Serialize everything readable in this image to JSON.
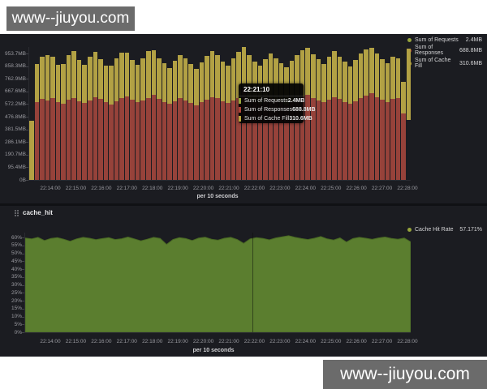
{
  "watermarks": {
    "top": "www--jiuyou.com",
    "bottom": "www--jiuyou.com"
  },
  "colors": {
    "requests": "#96a43c",
    "responses": "#96423a",
    "cache_fill": "#b2a144",
    "hit_fill": "#5b7e2f",
    "hit_stroke": "#4a6a24",
    "panel_bg": "#1b1c21"
  },
  "top_panel": {
    "legend": [
      {
        "label": "Sum of Requests",
        "value": "2.4MB",
        "color": "#96a43c"
      },
      {
        "label": "Sum of Responses",
        "value": "688.8MB",
        "color": "#aa4238"
      },
      {
        "label": "Sum of Cache Fill",
        "value": "310.6MB",
        "color": "#b8a43a"
      }
    ],
    "tooltip": {
      "time": "22:21:10",
      "rows": [
        {
          "label": "Sum of Requests",
          "value": "2.4MB",
          "color": "#96a43c"
        },
        {
          "label": "Sum of Responses",
          "value": "688.8MB",
          "color": "#aa4238"
        },
        {
          "label": "Sum of Cache Fill",
          "value": "310.6MB",
          "color": "#b8a43a"
        }
      ]
    },
    "xlabel": "per 10 seconds"
  },
  "bottom_panel": {
    "title": "cache_hit",
    "legend": [
      {
        "label": "Cache Hit Rate",
        "value": "57.171%",
        "color": "#96a43c"
      }
    ],
    "xlabel": "per 10 seconds"
  },
  "chart_data": [
    {
      "type": "bar",
      "stacked": true,
      "title": "Requests / Responses / Cache Fill per 10 seconds",
      "xlabel": "per 10 seconds",
      "ylabel": "",
      "x_ticks": [
        "22:14:00",
        "22:15:00",
        "22:16:00",
        "22:17:00",
        "22:18:00",
        "22:19:00",
        "22:20:00",
        "22:21:00",
        "22:22:00",
        "22:23:00",
        "22:24:00",
        "22:25:00",
        "22:26:00",
        "22:27:00",
        "22:28:00"
      ],
      "y_ticks": [
        "0B",
        "95.4MB",
        "190.7MB",
        "286.1MB",
        "381.5MB",
        "476.8MB",
        "572.2MB",
        "667.6MB",
        "762.9MB",
        "858.3MB",
        "953.7MB"
      ],
      "ylim_mb": [
        0,
        1003
      ],
      "legend_position": "top-right",
      "grid": false,
      "series_names": [
        "Sum of Requests",
        "Sum of Responses",
        "Sum of Cache Fill"
      ],
      "hover_values_mb": {
        "time": "22:21:10",
        "requests": 2.4,
        "responses": 688.8,
        "cache_fill": 310.6
      },
      "bars_offset_red_yellow_mb": [
        [
          0,
          0,
          445
        ],
        [
          0,
          585,
          290
        ],
        [
          0,
          610,
          320
        ],
        [
          0,
          600,
          345
        ],
        [
          0,
          620,
          310
        ],
        [
          0,
          590,
          280
        ],
        [
          0,
          575,
          300
        ],
        [
          0,
          605,
          335
        ],
        [
          0,
          615,
          355
        ],
        [
          0,
          595,
          310
        ],
        [
          0,
          580,
          290
        ],
        [
          0,
          600,
          330
        ],
        [
          0,
          625,
          340
        ],
        [
          0,
          610,
          300
        ],
        [
          0,
          585,
          275
        ],
        [
          0,
          570,
          290
        ],
        [
          0,
          595,
          320
        ],
        [
          0,
          615,
          345
        ],
        [
          0,
          630,
          330
        ],
        [
          0,
          605,
          300
        ],
        [
          0,
          585,
          285
        ],
        [
          0,
          600,
          315
        ],
        [
          0,
          620,
          350
        ],
        [
          0,
          640,
          340
        ],
        [
          0,
          610,
          310
        ],
        [
          0,
          590,
          290
        ],
        [
          0,
          575,
          270
        ],
        [
          0,
          595,
          305
        ],
        [
          0,
          615,
          330
        ],
        [
          0,
          600,
          320
        ],
        [
          0,
          580,
          295
        ],
        [
          0,
          560,
          275
        ],
        [
          0,
          585,
          300
        ],
        [
          0,
          605,
          330
        ],
        [
          0,
          625,
          345
        ],
        [
          0,
          615,
          325
        ],
        [
          0,
          595,
          300
        ],
        [
          0,
          580,
          285
        ],
        [
          0,
          600,
          320
        ],
        [
          0,
          620,
          345
        ],
        [
          0,
          691,
          311
        ],
        [
          0,
          610,
          330
        ],
        [
          0,
          590,
          305
        ],
        [
          0,
          575,
          285
        ],
        [
          0,
          595,
          315
        ],
        [
          0,
          615,
          340
        ],
        [
          0,
          600,
          320
        ],
        [
          0,
          585,
          295
        ],
        [
          0,
          570,
          280
        ],
        [
          0,
          590,
          310
        ],
        [
          0,
          610,
          335
        ],
        [
          0,
          630,
          350
        ],
        [
          0,
          645,
          355
        ],
        [
          0,
          620,
          330
        ],
        [
          0,
          600,
          310
        ],
        [
          0,
          585,
          290
        ],
        [
          0,
          605,
          325
        ],
        [
          0,
          625,
          345
        ],
        [
          0,
          610,
          320
        ],
        [
          0,
          590,
          300
        ],
        [
          0,
          575,
          280
        ],
        [
          0,
          595,
          310
        ],
        [
          0,
          615,
          340
        ],
        [
          0,
          635,
          350
        ],
        [
          0,
          655,
          345
        ],
        [
          0,
          625,
          330
        ],
        [
          0,
          605,
          305
        ],
        [
          0,
          590,
          290
        ],
        [
          0,
          610,
          320
        ],
        [
          0,
          620,
          300
        ],
        [
          0,
          500,
          240
        ],
        [
          455,
          0,
          535
        ]
      ]
    },
    {
      "type": "area",
      "title": "cache_hit",
      "xlabel": "per 10 seconds",
      "ylabel": "",
      "x_ticks": [
        "22:14:00",
        "22:15:00",
        "22:16:00",
        "22:17:00",
        "22:18:00",
        "22:19:00",
        "22:20:00",
        "22:21:00",
        "22:22:00",
        "22:23:00",
        "22:24:00",
        "22:25:00",
        "22:26:00",
        "22:27:00",
        "22:28:00"
      ],
      "y_ticks": [
        "0%",
        "5%",
        "10%",
        "15%",
        "20%",
        "25%",
        "30%",
        "35%",
        "40%",
        "45%",
        "50%",
        "55%",
        "60%"
      ],
      "ylim_pct": [
        0,
        63
      ],
      "legend_position": "top-right",
      "grid": false,
      "series_names": [
        "Cache Hit Rate"
      ],
      "current_value_pct": 57.171,
      "values_pct": [
        59.5,
        59,
        60,
        58,
        59.3,
        59.8,
        58.8,
        57.5,
        59,
        60,
        59.4,
        58.5,
        59.2,
        59.8,
        58.6,
        59.1,
        60.2,
        59,
        57.8,
        58.8,
        60,
        59.3,
        55.5,
        58.6,
        59.8,
        59.2,
        58,
        59.5,
        60.1,
        58.8,
        58.2,
        59.4,
        60,
        58.6,
        56.2,
        59,
        59.8,
        59.3,
        58.4,
        59.6,
        60.3,
        61,
        60,
        59.2,
        58.6,
        59.4,
        60.5,
        59,
        58.3,
        59.6,
        57,
        59.2,
        60,
        59.4,
        58.7,
        59.6,
        60.2,
        59.3,
        58.8,
        59.5,
        57.171
      ]
    }
  ]
}
